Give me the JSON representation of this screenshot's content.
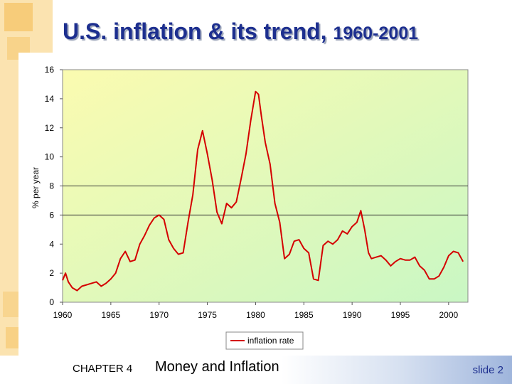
{
  "slide": {
    "title_main": "U.S. inflation & its trend,",
    "title_years": "1960-2001",
    "chapter": "CHAPTER 4",
    "chapter_title": "Money and Inflation",
    "slide_number": "slide 2"
  },
  "colors": {
    "title": "#1d2f8f",
    "series": "#d40000",
    "plot_bg_top": "#fbfbb0",
    "plot_bg_bottom": "#c9f7c4",
    "left_strip": "#fbe3b0"
  },
  "chart_data": {
    "type": "line",
    "title": "",
    "xlabel": "",
    "ylabel": "% per year",
    "xlim": [
      1960,
      2002
    ],
    "ylim": [
      0,
      16
    ],
    "xticks": [
      "1960",
      "1965",
      "1970",
      "1975",
      "1980",
      "1985",
      "1990",
      "1995",
      "2000"
    ],
    "yticks": [
      "0",
      "2",
      "4",
      "6",
      "8",
      "10",
      "12",
      "14",
      "16"
    ],
    "grid": "horizontal lines at 6 and 8",
    "legend": "bottom-center",
    "series": [
      {
        "name": "inflation rate",
        "x": [
          1960.0,
          1960.3,
          1960.6,
          1961.0,
          1961.5,
          1962.0,
          1962.5,
          1963.0,
          1963.5,
          1964.0,
          1964.5,
          1965.0,
          1965.5,
          1966.0,
          1966.5,
          1967.0,
          1967.5,
          1968.0,
          1968.5,
          1969.0,
          1969.5,
          1970.0,
          1970.5,
          1971.0,
          1971.5,
          1972.0,
          1972.5,
          1973.0,
          1973.5,
          1974.0,
          1974.5,
          1975.0,
          1975.5,
          1976.0,
          1976.5,
          1977.0,
          1977.5,
          1978.0,
          1978.5,
          1979.0,
          1979.5,
          1980.0,
          1980.3,
          1980.6,
          1981.0,
          1981.5,
          1982.0,
          1982.5,
          1983.0,
          1983.5,
          1984.0,
          1984.5,
          1985.0,
          1985.5,
          1986.0,
          1986.5,
          1987.0,
          1987.5,
          1988.0,
          1988.5,
          1989.0,
          1989.5,
          1990.0,
          1990.5,
          1990.9,
          1991.3,
          1991.7,
          1992.0,
          1992.5,
          1993.0,
          1993.5,
          1994.0,
          1994.5,
          1995.0,
          1995.5,
          1996.0,
          1996.5,
          1997.0,
          1997.5,
          1998.0,
          1998.5,
          1999.0,
          1999.5,
          2000.0,
          2000.5,
          2001.0,
          2001.5
        ],
        "values": [
          1.5,
          2.0,
          1.4,
          1.0,
          0.8,
          1.1,
          1.2,
          1.3,
          1.4,
          1.1,
          1.3,
          1.6,
          2.0,
          3.0,
          3.5,
          2.8,
          2.9,
          4.0,
          4.6,
          5.3,
          5.8,
          6.0,
          5.7,
          4.3,
          3.7,
          3.3,
          3.4,
          5.5,
          7.4,
          10.5,
          11.8,
          10.2,
          8.4,
          6.2,
          5.4,
          6.8,
          6.5,
          6.9,
          8.5,
          10.2,
          12.5,
          14.5,
          14.3,
          12.8,
          11.0,
          9.5,
          6.8,
          5.5,
          3.0,
          3.3,
          4.2,
          4.3,
          3.7,
          3.4,
          1.6,
          1.5,
          3.9,
          4.2,
          4.0,
          4.3,
          4.9,
          4.7,
          5.2,
          5.5,
          6.3,
          5.0,
          3.4,
          3.0,
          3.1,
          3.2,
          2.9,
          2.5,
          2.8,
          3.0,
          2.9,
          2.9,
          3.1,
          2.5,
          2.2,
          1.6,
          1.6,
          1.8,
          2.4,
          3.2,
          3.5,
          3.4,
          2.8
        ]
      }
    ]
  }
}
